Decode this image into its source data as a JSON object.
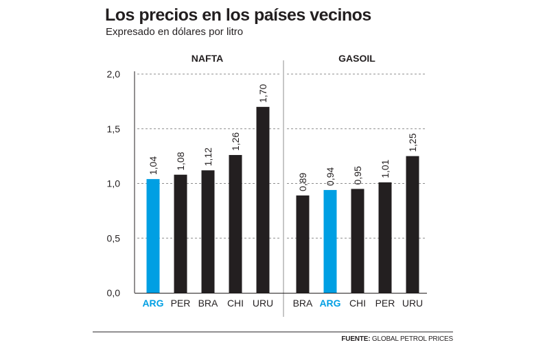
{
  "title": "Los precios en los países vecinos",
  "subtitle": "Expresado en dólares por litro",
  "source": {
    "label": "FUENTE:",
    "text": "GLOBAL PETROL PRICES"
  },
  "colors": {
    "bar": "#231f20",
    "highlight": "#009fe3",
    "grid": "#8c8c8c"
  },
  "chart_data": [
    {
      "type": "bar",
      "title": "NAFTA",
      "categories": [
        "ARG",
        "PER",
        "BRA",
        "CHI",
        "URU"
      ],
      "values": [
        1.04,
        1.08,
        1.12,
        1.26,
        1.7
      ],
      "value_labels": [
        "1,04",
        "1,08",
        "1,12",
        "1,26",
        "1,70"
      ],
      "highlight": "ARG",
      "ylim": [
        0,
        2.0
      ],
      "yticks": [
        0,
        0.5,
        1.0,
        1.5,
        2.0
      ],
      "ytick_labels": [
        "0,0",
        "0,5",
        "1,0",
        "1,5",
        "2,0"
      ],
      "grid": true
    },
    {
      "type": "bar",
      "title": "GASOIL",
      "categories": [
        "BRA",
        "ARG",
        "CHI",
        "PER",
        "URU"
      ],
      "values": [
        0.89,
        0.94,
        0.95,
        1.01,
        1.25
      ],
      "value_labels": [
        "0,89",
        "0,94",
        "0,95",
        "1,01",
        "1,25"
      ],
      "highlight": "ARG",
      "ylim": [
        0,
        2.0
      ],
      "yticks": [
        0,
        0.5,
        1.0,
        1.5,
        2.0
      ],
      "grid": true
    }
  ]
}
